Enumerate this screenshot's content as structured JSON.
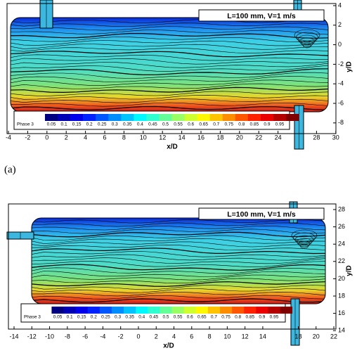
{
  "panels": [
    {
      "label": "(a)",
      "annotation": "L=100 mm, V=1 m/s",
      "xlabel": "x/D",
      "ylabel": "y/D",
      "xticks": [
        -4,
        -2,
        0,
        2,
        4,
        6,
        8,
        10,
        12,
        14,
        16,
        18,
        20,
        22,
        24,
        28,
        30
      ],
      "yticks": [
        4,
        2,
        0,
        -2,
        -4,
        -6,
        -8
      ],
      "colorbar": {
        "title": "Phase 3",
        "ticks": [
          0.05,
          0.1,
          0.15,
          0.2,
          0.25,
          0.3,
          0.35,
          0.4,
          0.45,
          0.5,
          0.55,
          0.6,
          0.65,
          0.7,
          0.75,
          0.8,
          0.85,
          0.9,
          0.95
        ]
      }
    },
    {
      "label": null,
      "annotation": "L=100 mm, V=1 m/s",
      "xlabel": "x/D",
      "ylabel": "y/D",
      "xticks": [
        -14,
        -12,
        -10,
        -8,
        -6,
        -4,
        -2,
        0,
        2,
        4,
        6,
        8,
        10,
        12,
        14,
        18,
        20,
        22
      ],
      "yticks": [
        28,
        26,
        24,
        22,
        20,
        18,
        16,
        14
      ],
      "colorbar": {
        "title": "Phase 3",
        "ticks": [
          0.05,
          0.1,
          0.15,
          0.2,
          0.25,
          0.3,
          0.35,
          0.4,
          0.45,
          0.5,
          0.55,
          0.6,
          0.65,
          0.7,
          0.75,
          0.8,
          0.85,
          0.9,
          0.95
        ]
      }
    }
  ]
}
